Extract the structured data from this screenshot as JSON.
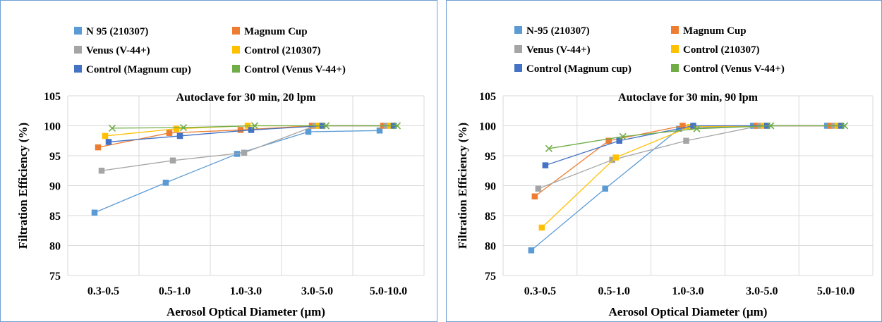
{
  "chart_data": [
    {
      "type": "line",
      "title": "Autoclave for 30 min, 20 lpm",
      "xlabel": "Aerosol Optical Diameter (µm)",
      "ylabel": "Filtration Efficiency (%)",
      "ylim": [
        75,
        105
      ],
      "yticks": [
        "75",
        "80",
        "85",
        "90",
        "95",
        "100",
        "105"
      ],
      "categories": [
        "0.3-0.5",
        "0.5-1.0",
        "1.0-3.0",
        "3.0-5.0",
        "5.0-10.0"
      ],
      "grid": true,
      "legend_position": "top",
      "series": [
        {
          "name": "N 95 (210307)",
          "color": "#5b9bd5",
          "marker": "square",
          "values": [
            85.5,
            90.5,
            95.3,
            99.0,
            99.2
          ]
        },
        {
          "name": "Magnum Cup",
          "color": "#ed7d31",
          "marker": "square",
          "values": [
            96.4,
            98.8,
            99.3,
            100.0,
            100.0
          ]
        },
        {
          "name": "Venus (V-44+)",
          "color": "#a5a5a5",
          "marker": "square",
          "values": [
            92.5,
            94.2,
            95.5,
            100.0,
            100.0
          ]
        },
        {
          "name": "Control (210307)",
          "color": "#ffc000",
          "marker": "square",
          "values": [
            98.3,
            99.5,
            100.0,
            100.0,
            100.0
          ]
        },
        {
          "name": "Control (Magnum cup)",
          "color": "#4472c4",
          "marker": "square",
          "values": [
            97.3,
            98.3,
            99.3,
            100.0,
            100.0
          ]
        },
        {
          "name": "Control (Venus V-44+)",
          "color": "#70ad47",
          "marker": "cross",
          "values": [
            99.6,
            99.7,
            100.0,
            100.0,
            100.0
          ]
        }
      ]
    },
    {
      "type": "line",
      "title": "Autoclave for 30 min, 90 lpm",
      "xlabel": "Aerosol Optical Diameter (µm)",
      "ylabel": "Filtration Efficiency (%)",
      "ylim": [
        75,
        105
      ],
      "yticks": [
        "75",
        "80",
        "85",
        "90",
        "95",
        "100",
        "105"
      ],
      "categories": [
        "0.3-0.5",
        "0.5-1.0",
        "1.0-3.0",
        "3.0-5.0",
        "5.0-10.0"
      ],
      "grid": true,
      "legend_position": "top",
      "series": [
        {
          "name": "N-95 (210307)",
          "color": "#5b9bd5",
          "marker": "square",
          "values": [
            79.2,
            89.5,
            99.5,
            100.0,
            100.0
          ]
        },
        {
          "name": "Magnum Cup",
          "color": "#ed7d31",
          "marker": "square",
          "values": [
            88.2,
            97.5,
            100.0,
            100.0,
            100.0
          ]
        },
        {
          "name": "Venus (V-44+)",
          "color": "#a5a5a5",
          "marker": "square",
          "values": [
            89.5,
            94.3,
            97.5,
            100.0,
            100.0
          ]
        },
        {
          "name": "Control (210307)",
          "color": "#ffc000",
          "marker": "square",
          "values": [
            83.0,
            94.7,
            99.8,
            100.0,
            100.0
          ]
        },
        {
          "name": "Control (Magnum cup)",
          "color": "#4472c4",
          "marker": "square",
          "values": [
            93.4,
            97.5,
            100.0,
            100.0,
            100.0
          ]
        },
        {
          "name": "Control (Venus V-44+)",
          "color": "#70ad47",
          "marker": "cross",
          "values": [
            96.2,
            98.2,
            99.5,
            100.0,
            100.0
          ]
        }
      ]
    }
  ]
}
